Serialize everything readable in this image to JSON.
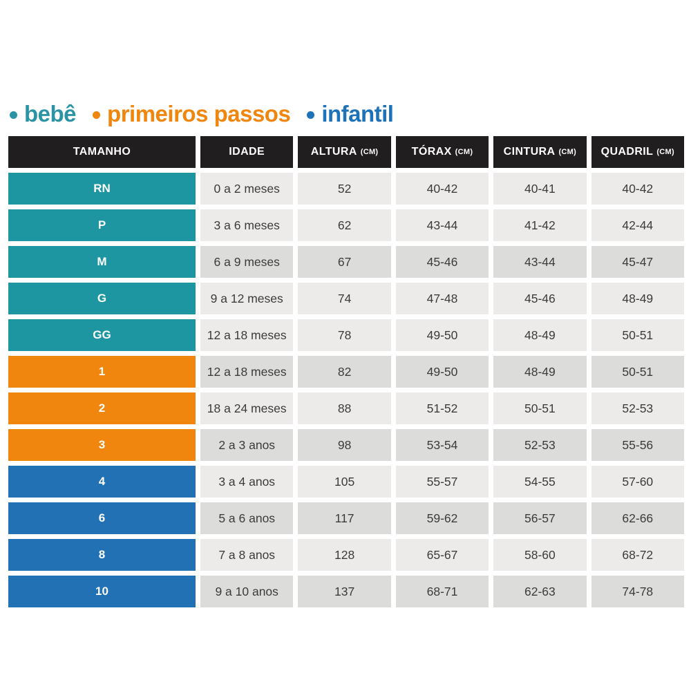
{
  "legend": {
    "items": [
      {
        "label": "bebê",
        "group": "bebe",
        "color": "#2A93A4"
      },
      {
        "label": "primeiros passos",
        "group": "primeiros-passos",
        "color": "#F0860D"
      },
      {
        "label": "infantil",
        "group": "infantil",
        "color": "#1D72B8"
      }
    ]
  },
  "colors": {
    "bebe": "#1E96A1",
    "primeiros-passos": "#F0860D",
    "infantil": "#2371B5",
    "header_bg": "#211E1F",
    "cell_light": "#ECEBE9",
    "cell_dark": "#DCDCDA",
    "cell_text": "#3B3B3B"
  },
  "chart_data": {
    "type": "table",
    "columns": [
      {
        "label": "TAMANHO",
        "unit": ""
      },
      {
        "label": "IDADE",
        "unit": ""
      },
      {
        "label": "ALTURA",
        "unit": "(CM)"
      },
      {
        "label": "TÓRAX",
        "unit": "(CM)"
      },
      {
        "label": "CINTURA",
        "unit": "(CM)"
      },
      {
        "label": "QUADRIL",
        "unit": "(CM)"
      }
    ],
    "rows": [
      {
        "group": "bebe",
        "shade": "light",
        "cells": [
          "RN",
          "0 a 2 meses",
          "52",
          "40-42",
          "40-41",
          "40-42"
        ]
      },
      {
        "group": "bebe",
        "shade": "light",
        "cells": [
          "P",
          "3 a 6 meses",
          "62",
          "43-44",
          "41-42",
          "42-44"
        ]
      },
      {
        "group": "bebe",
        "shade": "dark",
        "cells": [
          "M",
          "6 a 9 meses",
          "67",
          "45-46",
          "43-44",
          "45-47"
        ]
      },
      {
        "group": "bebe",
        "shade": "light",
        "cells": [
          "G",
          "9 a 12 meses",
          "74",
          "47-48",
          "45-46",
          "48-49"
        ]
      },
      {
        "group": "bebe",
        "shade": "light",
        "cells": [
          "GG",
          "12 a 18 meses",
          "78",
          "49-50",
          "48-49",
          "50-51"
        ]
      },
      {
        "group": "primeiros-passos",
        "shade": "dark",
        "cells": [
          "1",
          "12 a 18 meses",
          "82",
          "49-50",
          "48-49",
          "50-51"
        ]
      },
      {
        "group": "primeiros-passos",
        "shade": "light",
        "cells": [
          "2",
          "18 a 24 meses",
          "88",
          "51-52",
          "50-51",
          "52-53"
        ]
      },
      {
        "group": "primeiros-passos",
        "shade": "dark",
        "cells": [
          "3",
          "2 a 3 anos",
          "98",
          "53-54",
          "52-53",
          "55-56"
        ]
      },
      {
        "group": "infantil",
        "shade": "light",
        "cells": [
          "4",
          "3 a 4 anos",
          "105",
          "55-57",
          "54-55",
          "57-60"
        ]
      },
      {
        "group": "infantil",
        "shade": "dark",
        "cells": [
          "6",
          "5 a 6 anos",
          "117",
          "59-62",
          "56-57",
          "62-66"
        ]
      },
      {
        "group": "infantil",
        "shade": "light",
        "cells": [
          "8",
          "7 a 8 anos",
          "128",
          "65-67",
          "58-60",
          "68-72"
        ]
      },
      {
        "group": "infantil",
        "shade": "dark",
        "cells": [
          "10",
          "9 a 10 anos",
          "137",
          "68-71",
          "62-63",
          "74-78"
        ]
      }
    ]
  }
}
